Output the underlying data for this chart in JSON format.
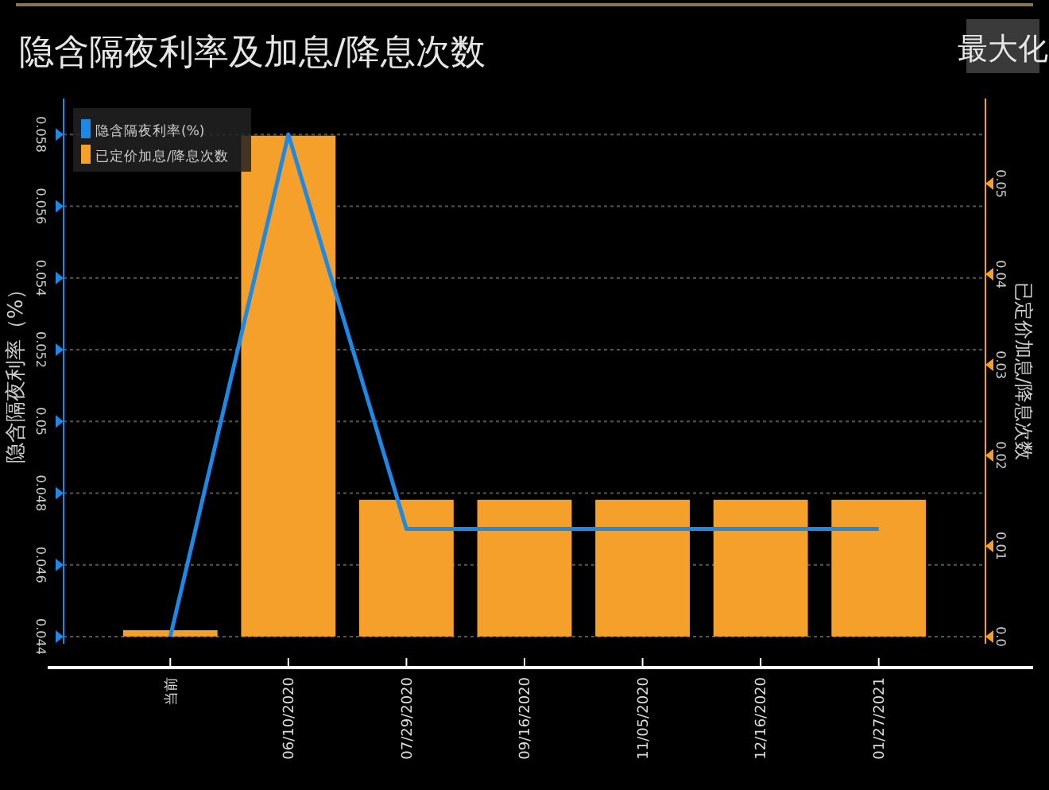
{
  "chart_data": {
    "type": "bar",
    "title": "隐含隔夜利率及加息/降息次数",
    "ylabel": "隐含隔夜利率（%）",
    "y2label": "已定价加息/降息次数",
    "annotations": [
      "最大化"
    ],
    "categories": [
      "当前",
      "06/10/2020",
      "07/29/2020",
      "09/16/2020",
      "11/05/2020",
      "12/16/2020",
      "01/27/2021"
    ],
    "series": [
      {
        "name": "隐含隔夜利率(%)",
        "type": "line",
        "axis": "y",
        "color": "#1e88e5",
        "values": [
          0.044,
          0.058,
          0.047,
          0.047,
          0.047,
          0.047,
          0.047
        ]
      },
      {
        "name": "已定价加息/降息次数",
        "axis": "y2",
        "color": "#f5a02a",
        "values": [
          0.0007,
          0.0553,
          0.0151,
          0.0151,
          0.0151,
          0.0151,
          0.0151
        ]
      }
    ],
    "ylim": [
      0.0438,
      0.059
    ],
    "yticks": [
      0.044,
      0.046,
      0.048,
      0.05,
      0.052,
      0.054,
      0.056,
      0.058
    ],
    "y2lim": [
      -0.0008,
      0.0594
    ],
    "y2ticks": [
      {
        "value": 0,
        "label": "0.0"
      },
      0.01,
      0.02,
      0.03,
      0.04,
      0.05
    ],
    "grid": "y",
    "legend": "top left",
    "marker": "none",
    "line_style": "solid"
  }
}
